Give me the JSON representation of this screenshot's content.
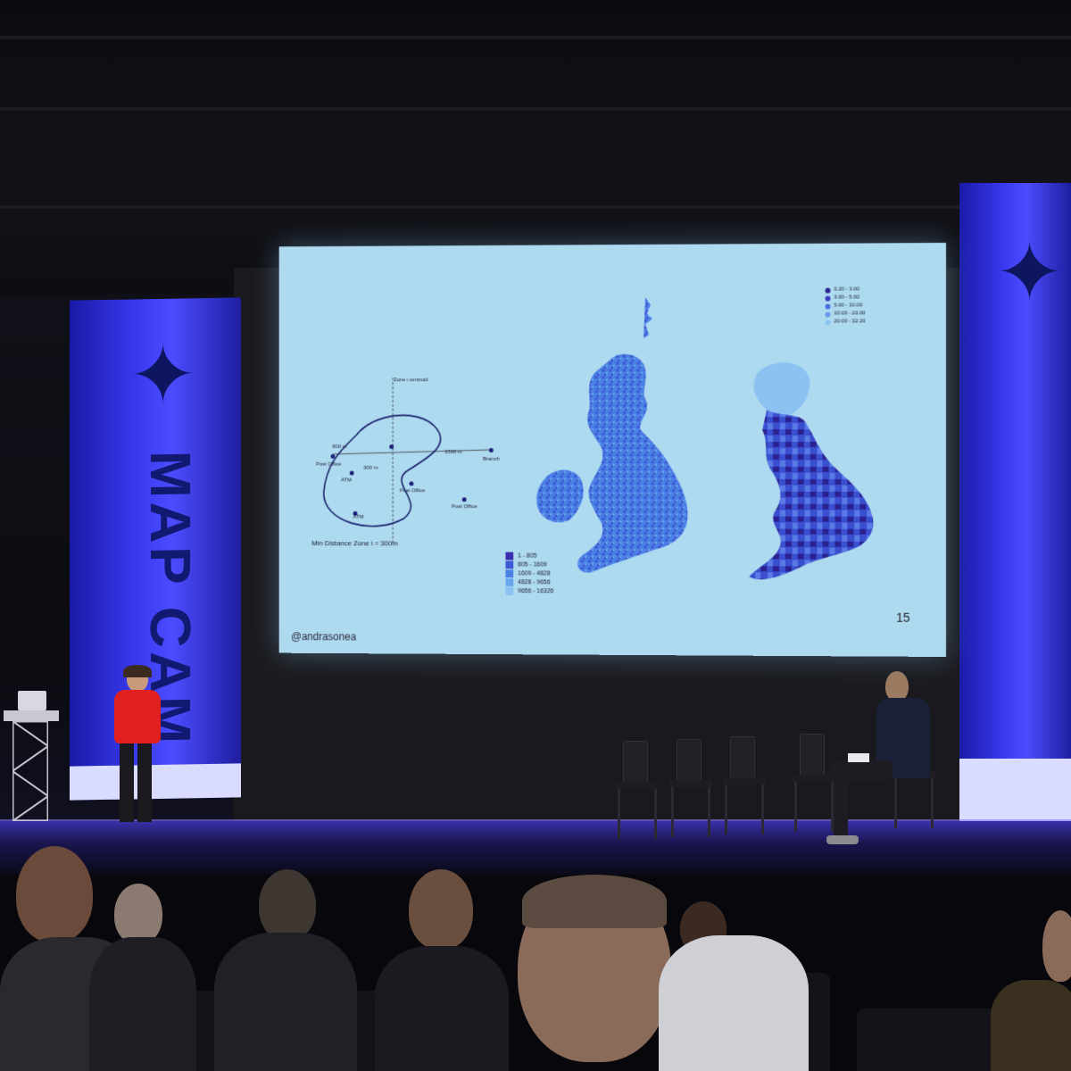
{
  "scene": {
    "description_type": "conference-stage-photo",
    "colors": {
      "banner_blue": "#3a3af0",
      "screen_bg": "#aedaf0",
      "stage_light": "#3a30a8",
      "speaker_jacket": "#e0201e"
    }
  },
  "banners": {
    "left": {
      "icon": "compass-rose-icon",
      "text": "MAP CAM"
    },
    "right": {
      "icon": "compass-rose-icon"
    }
  },
  "slide": {
    "page_number": "15",
    "handle": "@andrasonea",
    "diagram": {
      "axis_label": "Zone i centroid",
      "distance_600": "600 m",
      "distance_300": "300 m",
      "distance_1500": "1500 m",
      "branch": "Branch",
      "post_office_1": "Post Office",
      "post_office_2": "Post Office",
      "post_office_3": "Post Office",
      "atm_1": "ATM",
      "atm_2": "ATM",
      "caption": "Min Distance Zone i = 300m"
    },
    "map_left_legend": [
      {
        "label": "1 - 805",
        "color": "#3a2fb0"
      },
      {
        "label": "805 - 1609",
        "color": "#3f59d6"
      },
      {
        "label": "1609 - 4828",
        "color": "#4a7fe6"
      },
      {
        "label": "4828 - 9656",
        "color": "#6aa6ee"
      },
      {
        "label": "9656 - 16326",
        "color": "#8cc2f2"
      }
    ],
    "map_right_legend": [
      {
        "label": "0.20 - 3.00",
        "color": "#2a2090"
      },
      {
        "label": "3.00 - 5.00",
        "color": "#3a3ac0"
      },
      {
        "label": "5.00 - 10.00",
        "color": "#4a6ae0"
      },
      {
        "label": "10.00 - 20.00",
        "color": "#6a9aee"
      },
      {
        "label": "20.00 - 32.20",
        "color": "#8cc2f2"
      }
    ]
  }
}
